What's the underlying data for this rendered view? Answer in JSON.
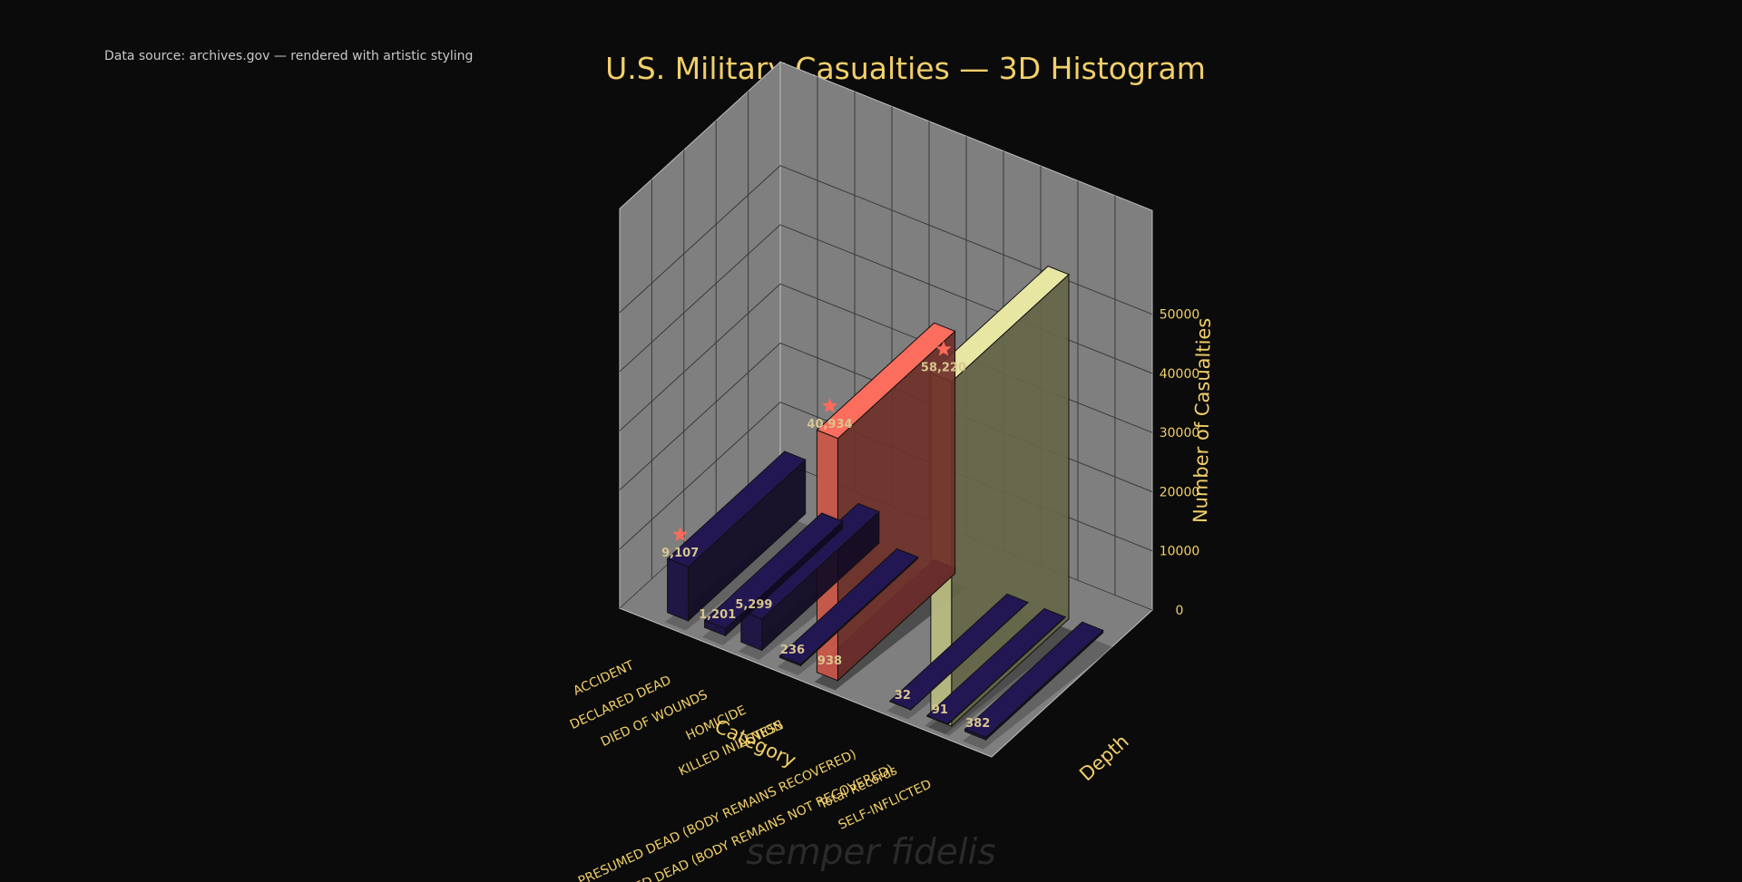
{
  "header": {
    "source_note": "Data source: archives.gov — rendered with artistic styling",
    "title": "U.S. Military Casualties — 3D Histogram",
    "watermark": "semper fidelis"
  },
  "chart_data": {
    "type": "bar",
    "subtype": "3d-bar",
    "title": "U.S. Military Casualties — 3D Histogram",
    "xlabel": "Category",
    "ylabel": "Depth",
    "zlabel": "Number of Casualties",
    "zlim": [
      0,
      58220
    ],
    "z_ticks": [
      0,
      10000,
      20000,
      30000,
      40000,
      50000
    ],
    "grid": true,
    "categories": [
      "ACCIDENT",
      "DECLARED DEAD",
      "DIED OF WOUNDS",
      "HOMICIDE",
      "ILLNESS",
      "KILLED IN ACTION",
      "PRESUMED DEAD (BODY REMAINS RECOVERED)",
      "PRESUMED DEAD (BODY REMAINS NOT RECOVERED)",
      "SELF-INFLICTED",
      "Total Records"
    ],
    "values": [
      9107,
      1201,
      5299,
      236,
      938,
      40934,
      32,
      91,
      382,
      58220
    ],
    "value_labels": [
      "9,107",
      "1,201",
      "5,299",
      "236",
      "938",
      "40,934",
      "32",
      "91",
      "382",
      "58,220"
    ],
    "highlighted": [
      "ACCIDENT",
      "KILLED IN ACTION",
      "Total Records"
    ],
    "colors": {
      "low": "#1c1242",
      "mid": "#c9574a",
      "high": "#b9b982",
      "star": "#ff6b5b",
      "accent": "#f2cf6a",
      "value_label": "#d8c58f",
      "pane": "#7f7f7f"
    }
  }
}
